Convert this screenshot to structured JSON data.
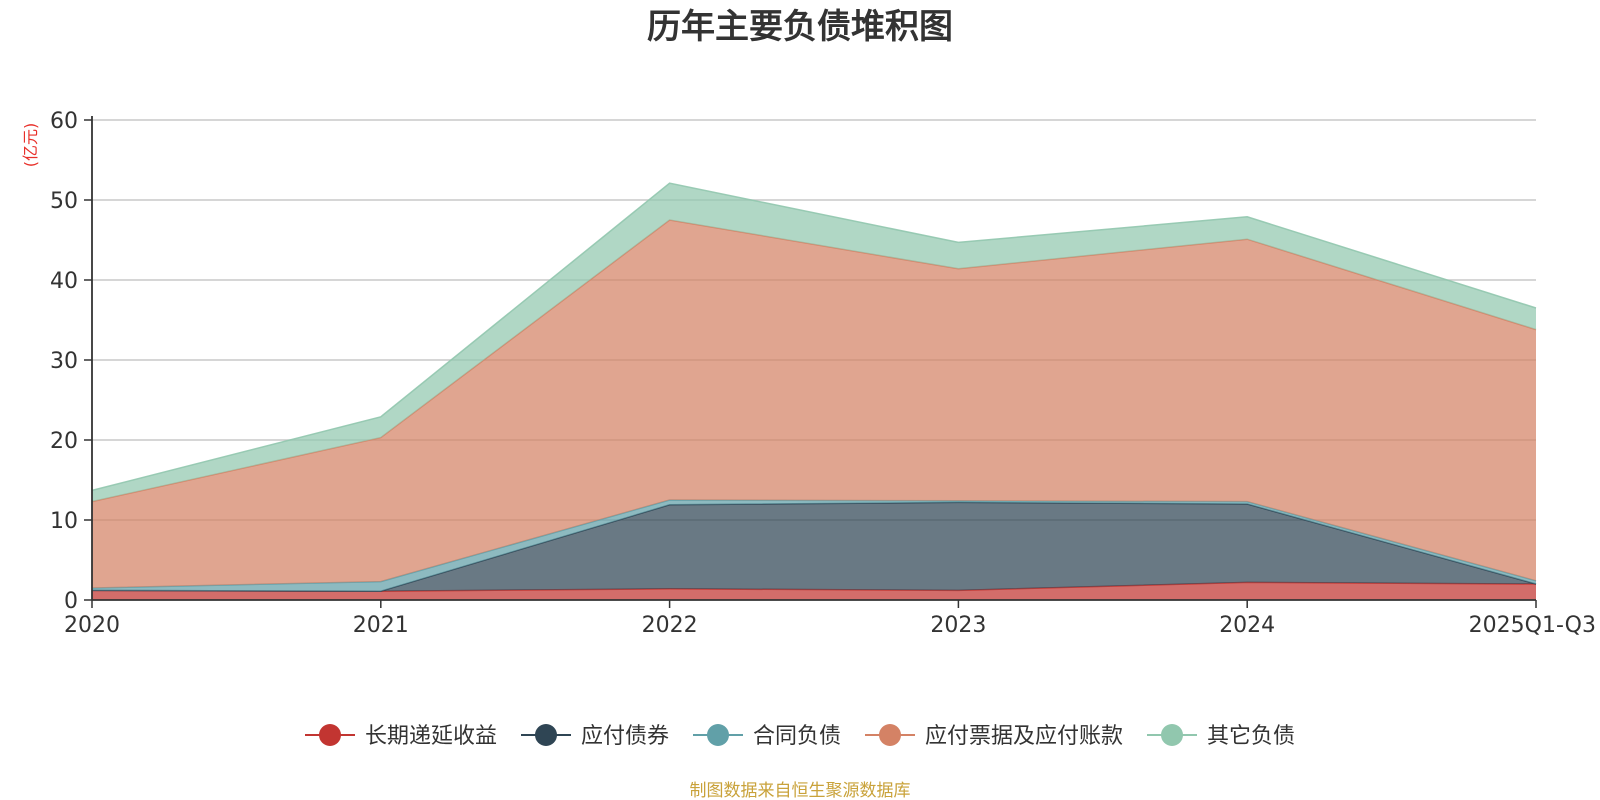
{
  "chart_data": {
    "type": "area",
    "stacked": true,
    "title": "历年主要负债堆积图",
    "unit_label": "(亿元)",
    "source_note": "制图数据来自恒生聚源数据库",
    "categories": [
      "2020",
      "2021",
      "2022",
      "2023",
      "2024",
      "2025Q1-Q3"
    ],
    "ylim": [
      0,
      60
    ],
    "yticks": [
      "0",
      "10",
      "20",
      "30",
      "40",
      "50",
      "60"
    ],
    "grid": true,
    "legend_position": "bottom",
    "series": [
      {
        "name": "长期递延收益",
        "color": "#c23531",
        "values": [
          1.2,
          1.1,
          1.4,
          1.2,
          2.2,
          2.0
        ]
      },
      {
        "name": "应付债券",
        "color": "#2f4554",
        "values": [
          0,
          0,
          10.5,
          11.0,
          9.8,
          0
        ]
      },
      {
        "name": "合同负债",
        "color": "#61a0a8",
        "values": [
          0.3,
          1.2,
          0.6,
          0.2,
          0.3,
          0.4
        ]
      },
      {
        "name": "应付票据及应付账款",
        "color": "#d48265",
        "values": [
          10.8,
          18.0,
          35.0,
          29.0,
          32.8,
          31.4
        ]
      },
      {
        "name": "其它负债",
        "color": "#91c7ae",
        "values": [
          1.4,
          2.6,
          4.6,
          3.3,
          2.8,
          2.7
        ]
      }
    ]
  }
}
